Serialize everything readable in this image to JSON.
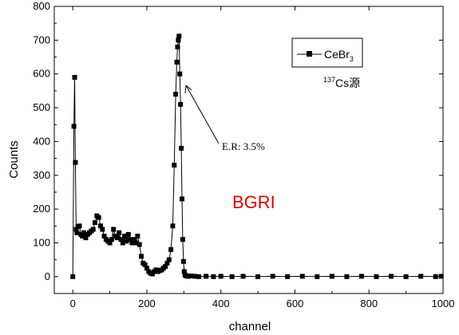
{
  "chart_data": {
    "type": "scatter",
    "line_connected": true,
    "xlabel": "channel",
    "ylabel": "Counts",
    "xlim": [
      -50,
      1000
    ],
    "ylim": [
      -50,
      800
    ],
    "xticks": [
      0,
      200,
      400,
      600,
      800,
      1000
    ],
    "yticks": [
      0,
      100,
      200,
      300,
      400,
      500,
      600,
      700,
      800
    ],
    "grid": false,
    "legend_position": "top-right",
    "colors": {
      "series": "#000000",
      "watermark": "#e00000"
    },
    "series": [
      {
        "name": "CeBr",
        "name_subscript": "3",
        "marker": "square",
        "x": [
          0,
          3,
          5,
          7,
          9,
          11,
          14,
          18,
          22,
          26,
          30,
          35,
          40,
          45,
          50,
          55,
          60,
          65,
          70,
          75,
          80,
          85,
          90,
          95,
          100,
          105,
          110,
          115,
          120,
          125,
          130,
          135,
          140,
          145,
          150,
          155,
          160,
          165,
          170,
          175,
          180,
          185,
          190,
          195,
          200,
          205,
          210,
          215,
          220,
          225,
          230,
          235,
          240,
          245,
          250,
          255,
          260,
          265,
          270,
          274,
          278,
          281,
          283,
          285,
          287,
          289,
          291,
          293,
          295,
          297,
          299,
          301,
          303,
          305,
          308,
          312,
          320,
          330,
          340,
          360,
          380,
          400,
          430,
          460,
          500,
          540,
          580,
          620,
          660,
          700,
          740,
          780,
          820,
          860,
          900,
          940,
          980,
          995
        ],
        "y": [
          0,
          445,
          590,
          338,
          140,
          130,
          148,
          150,
          125,
          120,
          130,
          115,
          125,
          130,
          135,
          140,
          160,
          180,
          175,
          150,
          140,
          120,
          110,
          105,
          100,
          110,
          140,
          120,
          115,
          130,
          110,
          100,
          120,
          105,
          125,
          110,
          100,
          110,
          100,
          120,
          95,
          60,
          40,
          35,
          25,
          15,
          10,
          8,
          15,
          20,
          15,
          18,
          20,
          25,
          30,
          40,
          50,
          80,
          150,
          330,
          540,
          635,
          680,
          700,
          712,
          600,
          510,
          380,
          230,
          110,
          45,
          15,
          5,
          3,
          2,
          1,
          2,
          1,
          0,
          1,
          0,
          1,
          0,
          1,
          0,
          1,
          0,
          1,
          0,
          1,
          0,
          1,
          0,
          1,
          0,
          1,
          0,
          1
        ]
      }
    ],
    "annotations": {
      "energy_resolution": "E.R: 3.5%",
      "source_mass_number": "137",
      "source_label": "Cs源"
    },
    "watermark": "BGRI"
  }
}
